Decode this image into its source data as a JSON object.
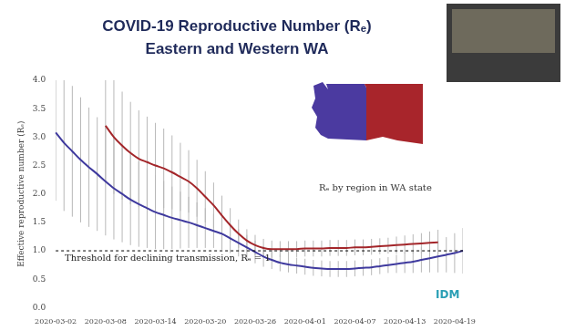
{
  "chart_data": {
    "type": "line",
    "title": "COVID-19 Reproductive Number (Rₑ)",
    "subtitle": "Eastern and Western WA",
    "y_label": "Effective reproductive number (Rₑ)",
    "inset_caption": "Rₑ by region in WA state",
    "logo_text": "IDM",
    "categories": [
      "2020-03-02",
      null,
      null,
      null,
      null,
      null,
      "2020-03-08",
      null,
      null,
      null,
      null,
      null,
      "2020-03-14",
      null,
      null,
      null,
      null,
      null,
      "2020-03-20",
      null,
      null,
      null,
      null,
      null,
      "2020-03-26",
      null,
      null,
      null,
      null,
      null,
      "2020-04-01",
      null,
      null,
      null,
      null,
      null,
      "2020-04-07",
      null,
      null,
      null,
      null,
      null,
      "2020-04-13",
      null,
      null,
      null,
      null,
      null,
      "2020-04-19",
      null
    ],
    "series": [
      {
        "color": "#3f3a9e",
        "marker": "none",
        "line_style": "solid",
        "values": [
          3.08,
          2.9,
          2.75,
          2.6,
          2.47,
          2.35,
          2.22,
          2.1,
          2.0,
          1.9,
          1.82,
          1.75,
          1.68,
          1.63,
          1.58,
          1.54,
          1.5,
          1.45,
          1.4,
          1.35,
          1.3,
          1.22,
          1.14,
          1.06,
          0.98,
          0.9,
          0.84,
          0.79,
          0.76,
          0.74,
          0.72,
          0.7,
          0.69,
          0.68,
          0.68,
          0.68,
          0.69,
          0.7,
          0.71,
          0.73,
          0.75,
          0.77,
          0.79,
          0.81,
          0.84,
          0.87,
          0.9,
          0.93,
          0.96,
          1.0
        ],
        "error": [
          1.2,
          1.2,
          1.15,
          1.1,
          1.05,
          1.0,
          0.95,
          0.9,
          0.85,
          0.8,
          0.75,
          0.7,
          0.65,
          0.6,
          0.55,
          0.5,
          0.45,
          0.4,
          0.35,
          0.3,
          0.28,
          0.26,
          0.24,
          0.22,
          0.2,
          0.18,
          0.16,
          0.15,
          0.14,
          0.14,
          0.14,
          0.14,
          0.14,
          0.14,
          0.14,
          0.14,
          0.14,
          0.14,
          0.14,
          0.14,
          0.14,
          0.16,
          0.18,
          0.2,
          0.22,
          0.25,
          0.28,
          0.31,
          0.35,
          0.4
        ]
      },
      {
        "color": "#a3262a",
        "marker": "none",
        "line_style": "solid",
        "values": [
          null,
          null,
          null,
          null,
          null,
          null,
          3.2,
          3.0,
          2.85,
          2.72,
          2.62,
          2.56,
          2.5,
          2.45,
          2.38,
          2.3,
          2.22,
          2.1,
          1.95,
          1.8,
          1.62,
          1.45,
          1.3,
          1.18,
          1.1,
          1.05,
          1.03,
          1.03,
          1.03,
          1.03,
          1.04,
          1.04,
          1.04,
          1.05,
          1.05,
          1.05,
          1.06,
          1.06,
          1.07,
          1.08,
          1.09,
          1.1,
          1.11,
          1.12,
          1.13,
          1.14,
          1.15,
          null,
          null,
          null
        ],
        "error": [
          null,
          null,
          null,
          null,
          null,
          null,
          1.0,
          1.0,
          0.95,
          0.9,
          0.85,
          0.8,
          0.75,
          0.7,
          0.65,
          0.6,
          0.55,
          0.5,
          0.45,
          0.4,
          0.35,
          0.3,
          0.25,
          0.2,
          0.18,
          0.16,
          0.15,
          0.14,
          0.14,
          0.14,
          0.14,
          0.14,
          0.14,
          0.14,
          0.14,
          0.14,
          0.14,
          0.14,
          0.14,
          0.14,
          0.14,
          0.15,
          0.16,
          0.17,
          0.18,
          0.2,
          0.22,
          null,
          null,
          null
        ]
      }
    ],
    "threshold": {
      "value": 1,
      "label": "Threshold for declining transmission, Rₑ = 1",
      "line_style": "dashed",
      "color": "#000000"
    },
    "ylim": [
      0,
      4
    ],
    "yticks": [
      {
        "value": 0,
        "label": "0.0"
      },
      {
        "value": 0.5,
        "label": "0.5"
      },
      {
        "value": 1,
        "label": "1.0"
      },
      {
        "value": 1.5,
        "label": "1.5"
      },
      {
        "value": 2,
        "label": "2.0"
      },
      {
        "value": 2.5,
        "label": "2.5"
      },
      {
        "value": 3,
        "label": "3.0"
      },
      {
        "value": 3.5,
        "label": "3.5"
      },
      {
        "value": 4,
        "label": "4.0"
      }
    ],
    "grid": false
  }
}
